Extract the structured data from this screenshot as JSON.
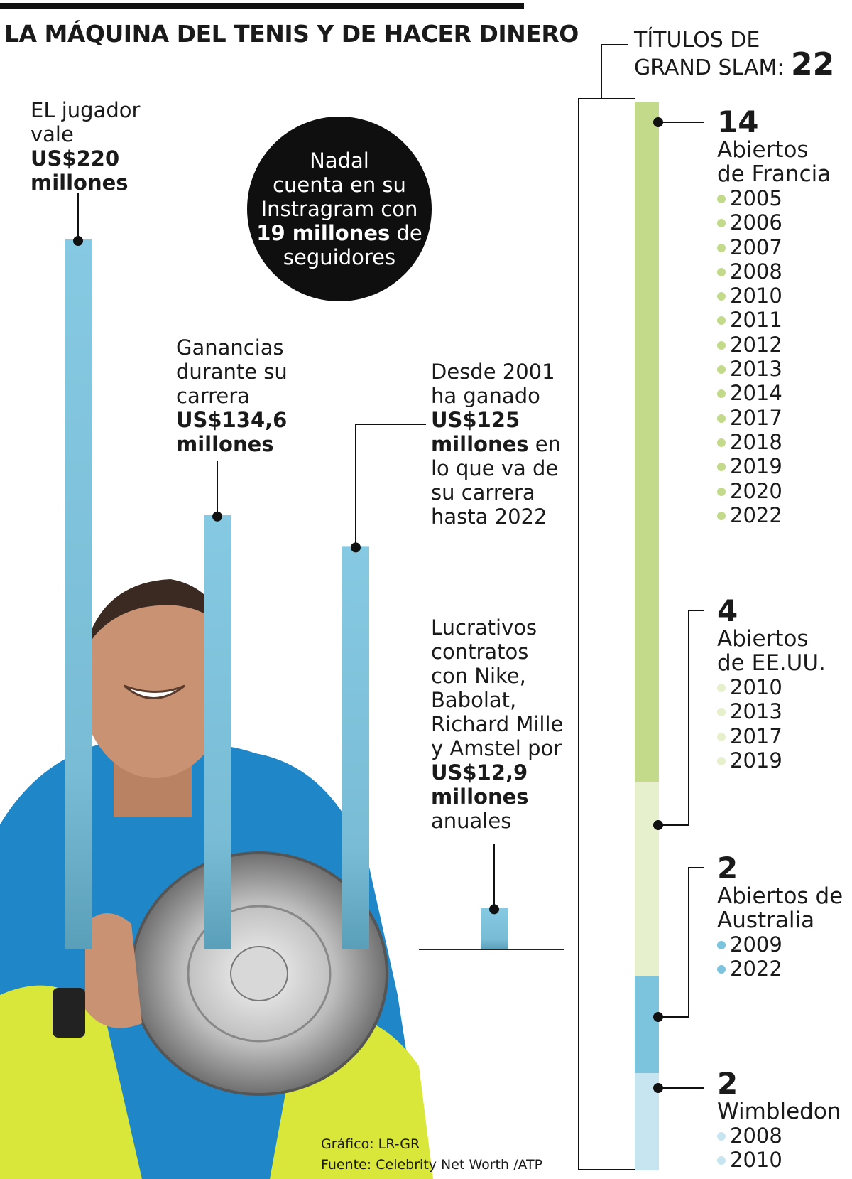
{
  "title": "LA MÁQUINA DEL TENIS Y DE HACER DINERO",
  "chart_data": [
    {
      "type": "bar",
      "title": "LA MÁQUINA DEL TENIS Y DE HACER DINERO",
      "categories": [
        "EL jugador vale",
        "Ganancias durante su carrera",
        "Desde 2001 ha ganado",
        "Lucrativos contratos anuales"
      ],
      "values": [
        220,
        134.6,
        125,
        12.9
      ],
      "unit": "US$ millones",
      "ylim": [
        0,
        220
      ],
      "annotations": [
        {
          "lines": [
            "EL jugador",
            "vale"
          ],
          "bold": [
            "US$220",
            "millones"
          ]
        },
        {
          "lines": [
            "Ganancias",
            "durante su",
            "carrera"
          ],
          "bold": [
            "US$134,6",
            "millones"
          ]
        },
        {
          "pre": [
            "Desde 2001",
            "ha ganado"
          ],
          "bold1": "US$125",
          "bold2": "millones",
          "inline": " en",
          "post": [
            "lo que va de",
            "su carrera",
            "hasta 2022"
          ]
        },
        {
          "lines": [
            "Lucrativos",
            "contratos",
            "con Nike,",
            "Babolat,",
            "Richard Mille",
            "y Amstel por"
          ],
          "bold": [
            "US$12,9",
            "millones"
          ],
          "post": [
            "anuales"
          ]
        }
      ]
    },
    {
      "type": "bar",
      "orientation": "stacked-vertical",
      "title": "TÍTULOS DE GRAND SLAM",
      "total": 22,
      "series": [
        {
          "name": "Abiertos de Francia",
          "value": 14,
          "color": "#c2da8a",
          "years": [
            "2005",
            "2006",
            "2007",
            "2008",
            "2010",
            "2011",
            "2012",
            "2013",
            "2014",
            "2017",
            "2018",
            "2019",
            "2020",
            "2022"
          ]
        },
        {
          "name": "Abiertos de EE.UU.",
          "value": 4,
          "color": "#e7f0cc",
          "years": [
            "2010",
            "2013",
            "2017",
            "2019"
          ]
        },
        {
          "name": "Abiertos de Australia",
          "value": 2,
          "color": "#7cc3de",
          "years": [
            "2009",
            "2022"
          ]
        },
        {
          "name": "Wimbledon",
          "value": 2,
          "color": "#c6e5f1",
          "years": [
            "2008",
            "2010"
          ]
        }
      ]
    }
  ],
  "circle": {
    "l1": "Nadal",
    "l2": "cuenta en su",
    "l3": "Instragram con",
    "bold": "19 millones",
    "l4suffix": " de",
    "l5": "seguidores"
  },
  "grand_slam": {
    "header1": "TÍTULOS DE",
    "header2": "GRAND SLAM: ",
    "total": "22",
    "groups": [
      {
        "count": "14",
        "name1": "Abiertos",
        "name2": "de Francia"
      },
      {
        "count": "4",
        "name1": "Abiertos",
        "name2": "de EE.UU."
      },
      {
        "count": "2",
        "name1": "Abiertos de",
        "name2": "Australia"
      },
      {
        "count": "2",
        "name1": "",
        "name2": "Wimbledon"
      }
    ]
  },
  "credits": {
    "grafico": "Gráfico: LR-GR",
    "fuente": "Fuente: Celebrity Net Worth /ATP"
  }
}
